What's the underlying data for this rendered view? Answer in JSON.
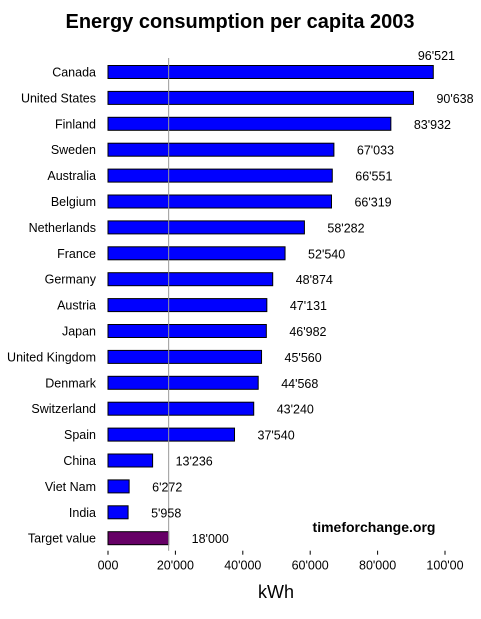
{
  "chart_data": {
    "type": "bar",
    "orientation": "horizontal",
    "title": "Energy consumption per capita 2003",
    "xlabel": "kWh",
    "ylabel": "",
    "xlim": [
      0,
      100000
    ],
    "x_ticks": [
      0,
      20000,
      40000,
      60000,
      80000,
      100000
    ],
    "x_tick_labels": [
      "000",
      "20'000",
      "40'000",
      "60'000",
      "80'000",
      "100'00"
    ],
    "reference_line": 18000,
    "grid": false,
    "legend": "none",
    "categories": [
      "Canada",
      "United States",
      "Finland",
      "Sweden",
      "Australia",
      "Belgium",
      "Netherlands",
      "France",
      "Germany",
      "Austria",
      "Japan",
      "United Kingdom",
      "Denmark",
      "Switzerland",
      "Spain",
      "China",
      "Viet Nam",
      "India",
      "Target value"
    ],
    "values": [
      96521,
      90638,
      83932,
      67033,
      66551,
      66319,
      58282,
      52540,
      48874,
      47131,
      46982,
      45560,
      44568,
      43240,
      37540,
      13236,
      6272,
      5958,
      18000
    ],
    "value_labels": [
      "96'521",
      "90'638",
      "83'932",
      "67'033",
      "66'551",
      "66'319",
      "58'282",
      "52'540",
      "48'874",
      "47'131",
      "46'982",
      "45'560",
      "44'568",
      "43'240",
      "37'540",
      "13'236",
      "6'272",
      "5'958",
      "18'000"
    ],
    "annotation": "timeforchange.org",
    "colors": {
      "bar": "#0000ff",
      "target_bar": "#660066",
      "bar_edge": "#000000",
      "reference_line": "#999999"
    }
  }
}
